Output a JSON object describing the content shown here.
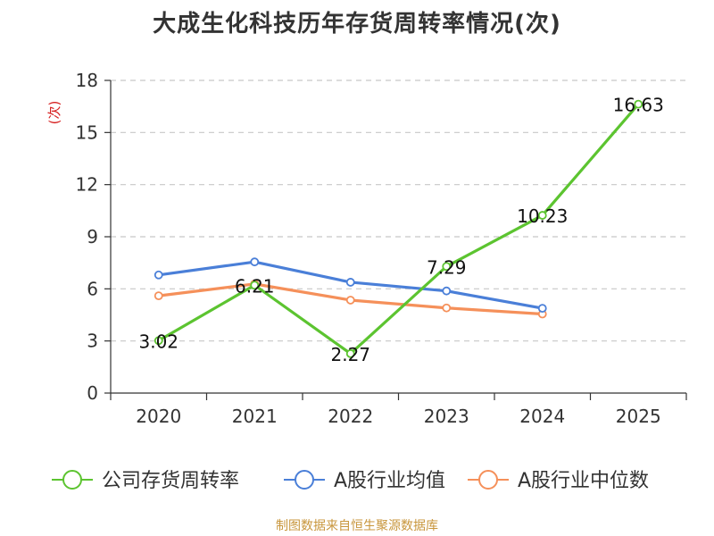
{
  "title": "大成生化科技历年存货周转率情况(次)",
  "source": "制图数据来自恒生聚源数据库",
  "chart_data": {
    "type": "line",
    "title": "大成生化科技历年存货周转率情况(次)",
    "ylabel": "(次)",
    "xlabel": "",
    "categories": [
      "2020",
      "2021",
      "2022",
      "2023",
      "2024",
      "2025"
    ],
    "ylim": [
      0,
      18
    ],
    "yticks": [
      0,
      3,
      6,
      9,
      12,
      15,
      18
    ],
    "grid": true,
    "legend_position": "bottom",
    "series": [
      {
        "name": "公司存货周转率",
        "color": "#5cc430",
        "values": [
          3.02,
          6.21,
          2.27,
          7.29,
          10.23,
          16.63
        ],
        "show_labels": true
      },
      {
        "name": "A股行业均值",
        "color": "#4a7fd8",
        "values": [
          6.8,
          7.55,
          6.38,
          5.88,
          4.88,
          null
        ],
        "show_labels": false
      },
      {
        "name": "A股行业中位数",
        "color": "#f5905a",
        "values": [
          5.6,
          6.28,
          5.35,
          4.9,
          4.55,
          null
        ],
        "show_labels": false
      }
    ]
  }
}
